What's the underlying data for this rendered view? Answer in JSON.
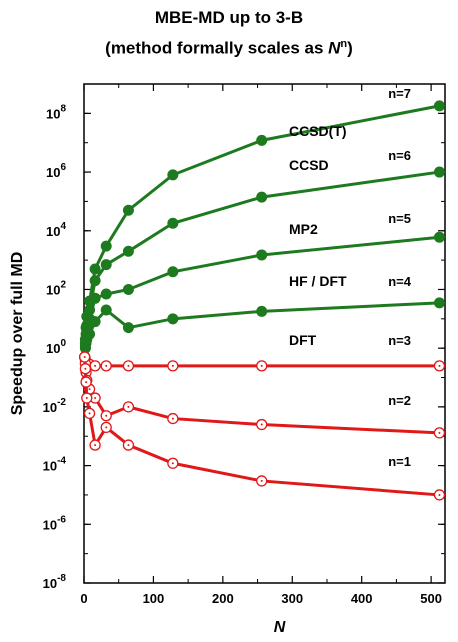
{
  "title_line1": "MBE-MD up to 3-B",
  "title_line2": {
    "prefix": "(method formally scales as ",
    "var": "N",
    "exp": "n",
    "suffix": ")"
  },
  "chart_data": {
    "type": "line",
    "xlabel": "N",
    "ylabel": "Speedup over full MD",
    "xlim": [
      0,
      520
    ],
    "xticks": [
      "0",
      "100",
      "200",
      "300",
      "400",
      "500"
    ],
    "ylim_log10": [
      -8,
      9
    ],
    "yticks": [
      {
        "base": "10",
        "exp": "8"
      },
      {
        "base": "10",
        "exp": "6"
      },
      {
        "base": "10",
        "exp": "4"
      },
      {
        "base": "10",
        "exp": "2"
      },
      {
        "base": "10",
        "exp": "0"
      },
      {
        "base": "10",
        "exp": "-2"
      },
      {
        "base": "10",
        "exp": "-4"
      },
      {
        "base": "10",
        "exp": "-6"
      },
      {
        "base": "10",
        "exp": "-8"
      }
    ],
    "y_scale": "log",
    "grid": false,
    "colors": {
      "green": "#1e7a1e",
      "red": "#e01818"
    },
    "series": [
      {
        "n_label": "n=7",
        "method_label": "CCSD(T)",
        "color": "green",
        "marker": "filled",
        "x": [
          1,
          2,
          3,
          4,
          8,
          16,
          32,
          64,
          128,
          256,
          512
        ],
        "y": [
          0.5,
          2,
          5,
          12,
          40,
          500,
          3000,
          50000,
          800000,
          12000000,
          180000000
        ]
      },
      {
        "n_label": "n=6",
        "method_label": "CCSD",
        "color": "green",
        "marker": "filled",
        "x": [
          1,
          2,
          3,
          4,
          8,
          16,
          32,
          64,
          128,
          256,
          512
        ],
        "y": [
          0.5,
          1.5,
          3,
          6,
          20,
          200,
          700,
          2000,
          18000,
          140000,
          1000000
        ]
      },
      {
        "n_label": "n=5",
        "method_label": "MP2",
        "color": "green",
        "marker": "filled",
        "x": [
          1,
          2,
          3,
          4,
          8,
          16,
          32,
          64,
          128,
          256,
          512
        ],
        "y": [
          0.5,
          1.2,
          2,
          4,
          10,
          50,
          70,
          100,
          400,
          1500,
          6000
        ]
      },
      {
        "n_label": "n=4",
        "method_label": "HF / DFT",
        "color": "green",
        "marker": "filled",
        "x": [
          1,
          2,
          3,
          4,
          8,
          16,
          32,
          64,
          128,
          256,
          512
        ],
        "y": [
          0.5,
          1,
          1.5,
          2,
          3,
          8,
          20,
          5,
          10,
          18,
          35
        ]
      },
      {
        "n_label": "n=3",
        "method_label": "DFT",
        "color": "red",
        "marker": "open",
        "x": [
          1,
          2,
          3,
          4,
          8,
          16,
          32,
          64,
          128,
          256,
          512
        ],
        "y": [
          0.5,
          0.4,
          0.35,
          0.3,
          0.28,
          0.25,
          0.25,
          0.25,
          0.25,
          0.25,
          0.25
        ]
      },
      {
        "n_label": "n=2",
        "method_label": "",
        "color": "red",
        "marker": "open",
        "x": [
          1,
          2,
          3,
          4,
          8,
          16,
          32,
          64,
          128,
          256,
          512
        ],
        "y": [
          0.5,
          0.3,
          0.15,
          0.08,
          0.04,
          0.02,
          0.005,
          0.01,
          0.004,
          0.0025,
          0.0013
        ]
      },
      {
        "n_label": "n=1",
        "method_label": "",
        "color": "red",
        "marker": "open",
        "x": [
          1,
          2,
          3,
          4,
          8,
          16,
          32,
          64,
          128,
          256,
          512
        ],
        "y": [
          0.5,
          0.2,
          0.07,
          0.02,
          0.006,
          0.0005,
          0.002,
          0.0005,
          0.00012,
          3e-05,
          1e-05
        ]
      }
    ]
  }
}
